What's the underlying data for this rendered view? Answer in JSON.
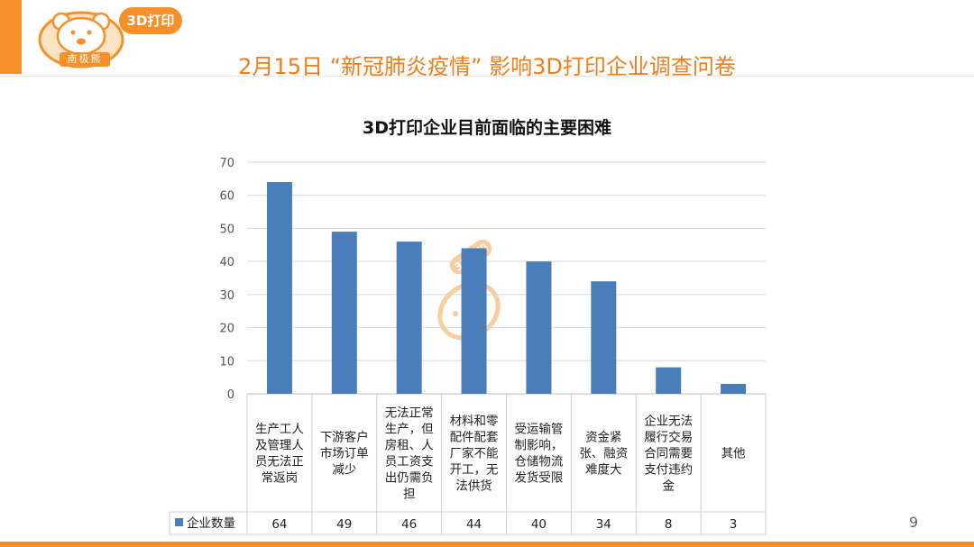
{
  "header": {
    "logo_badge": "3D打印",
    "logo_name": "南极熊",
    "title": "2月15日 “新冠肺炎疫情” 影响3D打印企业调查问卷"
  },
  "page_number": "9",
  "watermark_badge": "3D打印",
  "colors": {
    "accent": "#f5902a",
    "title": "#ef7d1a",
    "bar": "#4a7ebb"
  },
  "chart_data": {
    "type": "bar",
    "title": "3D打印企业目前面临的主要困难",
    "categories": [
      "生产工人及管理人员无法正常返岗",
      "下游客户市场订单减少",
      "无法正常生产，但房租、人员工资支出仍需负担",
      "材料和零配件配套厂家不能开工，无法供货",
      "受运输管制影响，仓储物流发货受限",
      "资金紧张、融资难度大",
      "企业无法履行交易合同需要支付违约金",
      "其他"
    ],
    "category_lines": [
      [
        "生产工人",
        "及管理人",
        "员无法正",
        "常返岗"
      ],
      [
        "下游客户",
        "市场订单",
        "减少"
      ],
      [
        "无法正常",
        "生产，但",
        "房租、人",
        "员工资支",
        "出仍需负",
        "担"
      ],
      [
        "材料和零",
        "配件配套",
        "厂家不能",
        "开工，无",
        "法供货"
      ],
      [
        "受运输管",
        "制影响，",
        "仓储物流",
        "发货受限"
      ],
      [
        "资金紧",
        "张、融资",
        "难度大"
      ],
      [
        "企业无法",
        "履行交易",
        "合同需要",
        "支付违约",
        "金"
      ],
      [
        "其他"
      ]
    ],
    "series": [
      {
        "name": "企业数量",
        "values": [
          64,
          49,
          46,
          44,
          40,
          34,
          8,
          3
        ]
      }
    ],
    "y_ticks": [
      0,
      10,
      20,
      30,
      40,
      50,
      60,
      70
    ],
    "ylim": [
      0,
      70
    ],
    "grid": true,
    "legend": "data-table-left"
  }
}
